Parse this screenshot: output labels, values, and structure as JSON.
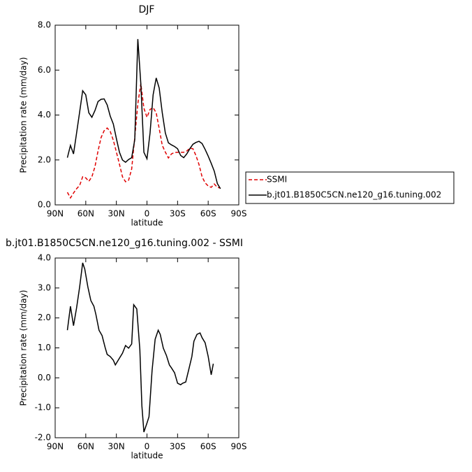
{
  "chart_data": [
    {
      "type": "line",
      "title": "DJF",
      "x_label": "latitude",
      "y_label": "Precipitation rate (mm/day)",
      "x": [
        78,
        75,
        72,
        69,
        66,
        63,
        60,
        57,
        54,
        51,
        48,
        45,
        42,
        39,
        36,
        33,
        30,
        27,
        24,
        21,
        18,
        15,
        12,
        9,
        6,
        3,
        0,
        -3,
        -6,
        -9,
        -12,
        -15,
        -18,
        -21,
        -24,
        -27,
        -30,
        -33,
        -36,
        -39,
        -42,
        -45,
        -48,
        -51,
        -54,
        -57,
        -60,
        -63,
        -66,
        -69,
        -72
      ],
      "series": [
        {
          "name": "SSMI",
          "color": "#e00000",
          "line_style": "dashed",
          "values": [
            0.56,
            0.31,
            0.53,
            0.72,
            0.87,
            1.25,
            1.2,
            1.05,
            1.25,
            1.7,
            2.4,
            3.0,
            3.3,
            3.42,
            3.27,
            2.88,
            2.35,
            1.81,
            1.25,
            1.03,
            1.1,
            1.6,
            3.0,
            4.5,
            5.4,
            4.3,
            3.9,
            4.25,
            4.33,
            4.1,
            3.4,
            2.65,
            2.35,
            2.09,
            2.27,
            2.33,
            2.34,
            2.34,
            2.34,
            2.4,
            2.52,
            2.5,
            2.2,
            1.8,
            1.25,
            0.98,
            0.84,
            0.78,
            0.93,
            0.78,
            0.75
          ]
        },
        {
          "name": "b.jt01.B1850C5CN.ne120_g16.tuning.002",
          "color": "#000000",
          "line_style": "solid",
          "values": [
            2.1,
            2.65,
            2.27,
            3.2,
            4.14,
            5.08,
            4.9,
            4.1,
            3.9,
            4.2,
            4.6,
            4.7,
            4.72,
            4.45,
            3.95,
            3.6,
            2.95,
            2.34,
            2.0,
            1.9,
            2.02,
            2.1,
            2.9,
            7.38,
            5.39,
            2.34,
            2.05,
            3.2,
            4.9,
            5.65,
            5.2,
            4.1,
            3.2,
            2.76,
            2.67,
            2.6,
            2.5,
            2.2,
            2.1,
            2.27,
            2.5,
            2.7,
            2.78,
            2.83,
            2.73,
            2.47,
            2.17,
            1.85,
            1.5,
            0.95,
            0.72
          ]
        }
      ],
      "xlim": [
        90,
        -90
      ],
      "xticks": [
        {
          "value": 90,
          "label": "90N"
        },
        {
          "value": 60,
          "label": "60N"
        },
        {
          "value": 30,
          "label": "30N"
        },
        0,
        {
          "value": -30,
          "label": "30S"
        },
        {
          "value": -60,
          "label": "60S"
        },
        {
          "value": -90,
          "label": "90S"
        }
      ],
      "ylim": [
        0,
        8
      ],
      "yticks": [
        {
          "value": 0,
          "label": "0.0"
        },
        {
          "value": 2,
          "label": "2.0"
        },
        {
          "value": 4,
          "label": "4.0"
        },
        {
          "value": 6,
          "label": "6.0"
        },
        {
          "value": 8,
          "label": "8.0"
        }
      ],
      "legend": "outside-right"
    },
    {
      "type": "line",
      "title": "b.jt01.B1850C5CN.ne120_g16.tuning.002 - SSMI",
      "x_label": "latitude",
      "y_label": "Precipitation rate (mm/day)",
      "x": [
        78,
        75,
        72,
        69,
        66,
        63,
        61,
        58,
        55,
        52,
        50,
        47,
        44,
        41,
        39,
        36,
        33,
        31,
        27,
        24,
        21,
        18,
        15,
        13,
        10,
        7,
        5,
        3,
        0,
        -2,
        -5,
        -8,
        -11,
        -13,
        -16,
        -19,
        -22,
        -24,
        -27,
        -30,
        -33,
        -35,
        -38,
        -41,
        -44,
        -46,
        -49,
        -52,
        -54,
        -57,
        -60,
        -63,
        -65
      ],
      "series": [
        {
          "name": "b.jt01.B1850C5CN.ne120_g16.tuning.002 - SSMI",
          "color": "#000000",
          "line_style": "solid",
          "values": [
            1.59,
            2.39,
            1.74,
            2.34,
            3.04,
            3.84,
            3.63,
            3.04,
            2.58,
            2.39,
            2.11,
            1.59,
            1.41,
            1.01,
            0.78,
            0.71,
            0.59,
            0.43,
            0.66,
            0.82,
            1.08,
            0.99,
            1.13,
            2.44,
            2.3,
            0.94,
            -0.93,
            -1.81,
            -1.51,
            -1.3,
            0.24,
            1.29,
            1.59,
            1.45,
            0.99,
            0.75,
            0.43,
            0.33,
            0.17,
            -0.18,
            -0.23,
            -0.18,
            -0.14,
            0.28,
            0.71,
            1.22,
            1.45,
            1.5,
            1.34,
            1.17,
            0.71,
            0.1,
            0.47
          ]
        }
      ],
      "xlim": [
        90,
        -90
      ],
      "xticks": [
        {
          "value": 90,
          "label": "90N"
        },
        {
          "value": 60,
          "label": "60N"
        },
        {
          "value": 30,
          "label": "30N"
        },
        0,
        {
          "value": -30,
          "label": "30S"
        },
        {
          "value": -60,
          "label": "60S"
        },
        {
          "value": -90,
          "label": "90S"
        }
      ],
      "ylim": [
        -2,
        4
      ],
      "yticks": [
        {
          "value": -2,
          "label": "-2.0"
        },
        {
          "value": -1,
          "label": "-1.0"
        },
        {
          "value": 0,
          "label": "0.0"
        },
        {
          "value": 1,
          "label": "1.0"
        },
        {
          "value": 2,
          "label": "2.0"
        },
        {
          "value": 3,
          "label": "3.0"
        },
        {
          "value": 4,
          "label": "4.0"
        }
      ],
      "legend": "none"
    }
  ]
}
